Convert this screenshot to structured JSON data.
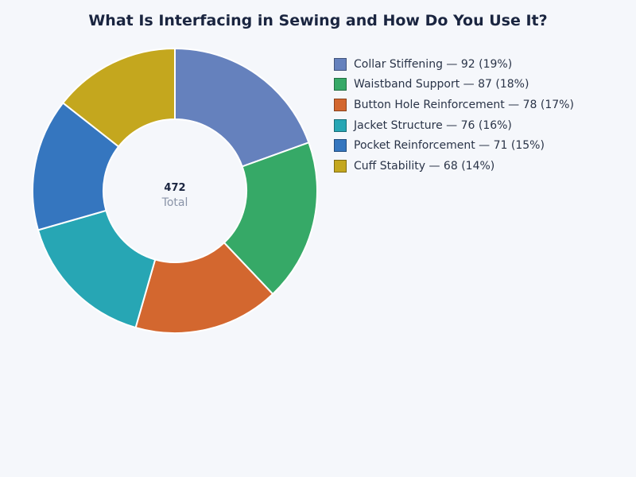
{
  "title": "What Is Interfacing in Sewing and How Do You Use It?",
  "center": {
    "total_value": "472",
    "total_label": "Total"
  },
  "legend": [
    {
      "label": "Collar Stiffening — 92 (19%)",
      "color": "#6581bd"
    },
    {
      "label": "Waistband Support — 87 (18%)",
      "color": "#36a967"
    },
    {
      "label": "Button Hole Reinforcement — 78 (17%)",
      "color": "#d3672f"
    },
    {
      "label": "Jacket Structure — 76 (16%)",
      "color": "#27a6b4"
    },
    {
      "label": "Pocket Reinforcement — 71 (15%)",
      "color": "#3576bf"
    },
    {
      "label": "Cuff Stability — 68 (14%)",
      "color": "#c4a71e"
    }
  ],
  "chart_data": {
    "type": "pie",
    "subtype": "donut",
    "title": "What Is Interfacing in Sewing and How Do You Use It?",
    "categories": [
      "Collar Stiffening",
      "Waistband Support",
      "Button Hole Reinforcement",
      "Jacket Structure",
      "Pocket Reinforcement",
      "Cuff Stability"
    ],
    "values": [
      92,
      87,
      78,
      76,
      71,
      68
    ],
    "percentages": [
      19,
      18,
      17,
      16,
      15,
      14
    ],
    "colors": [
      "#6581bd",
      "#36a967",
      "#d3672f",
      "#27a6b4",
      "#3576bf",
      "#c4a71e"
    ],
    "total": 472,
    "center_label": "Total",
    "legend_position": "right",
    "start_angle": "top, clockwise"
  }
}
